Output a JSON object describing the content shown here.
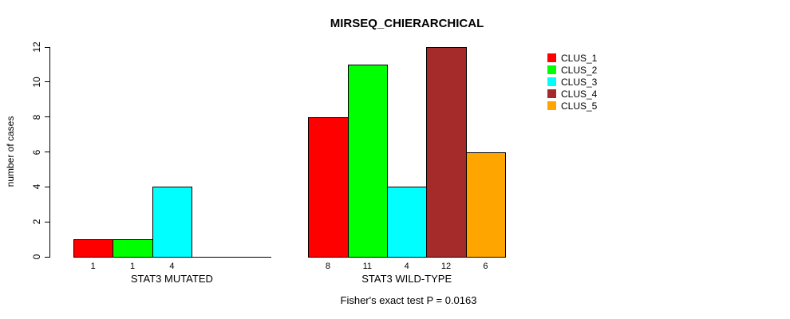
{
  "chart_data": {
    "type": "bar",
    "title": "MIRSEQ_CHIERARCHICAL",
    "ylabel": "number of cases",
    "xlabel": "",
    "ylim": [
      0,
      12
    ],
    "yticks": [
      0,
      2,
      4,
      6,
      8,
      10,
      12
    ],
    "grid": false,
    "legend_position": "right",
    "categories": [
      "STAT3 MUTATED",
      "STAT3 WILD-TYPE"
    ],
    "series": [
      {
        "name": "CLUS_1",
        "color": "#FF0000",
        "values": [
          1,
          8
        ]
      },
      {
        "name": "CLUS_2",
        "color": "#00FF00",
        "values": [
          1,
          11
        ]
      },
      {
        "name": "CLUS_3",
        "color": "#00FFFF",
        "values": [
          4,
          4
        ]
      },
      {
        "name": "CLUS_4",
        "color": "#A52A2A",
        "values": [
          0,
          12
        ]
      },
      {
        "name": "CLUS_5",
        "color": "#FFA500",
        "values": [
          0,
          6
        ]
      }
    ],
    "bar_value_labels": {
      "STAT3 MUTATED": [
        "1",
        "1",
        "4"
      ],
      "STAT3 WILD-TYPE": [
        "8",
        "11",
        "4",
        "12",
        "6"
      ]
    },
    "annotation": "Fisher's exact test P = 0.0163"
  },
  "colors": {
    "axis": "#000000",
    "text": "#000000",
    "background": "#FFFFFF"
  }
}
